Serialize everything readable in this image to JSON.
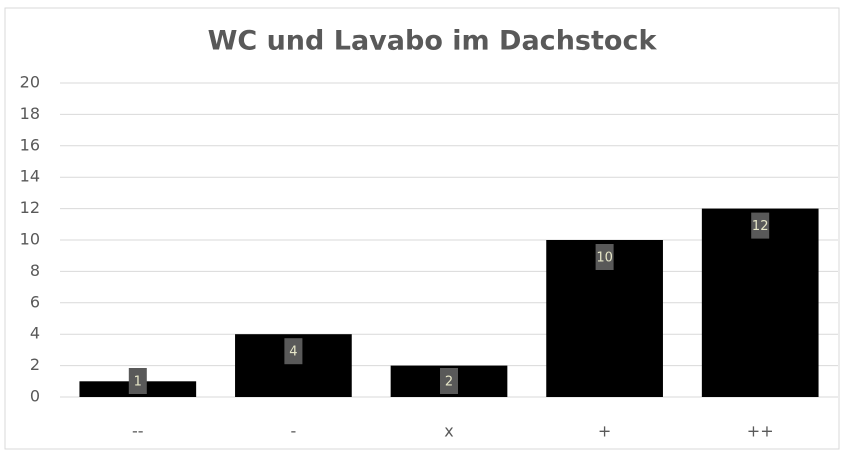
{
  "chart_data": {
    "type": "bar",
    "title": "WC und Lavabo im Dachstock",
    "categories": [
      "--",
      "-",
      "x",
      "+",
      "++"
    ],
    "values": [
      1,
      4,
      2,
      10,
      12
    ],
    "color": "#000000",
    "ylim": [
      0,
      20
    ],
    "yticks": [
      0,
      2,
      4,
      6,
      8,
      10,
      12,
      14,
      16,
      18,
      20
    ],
    "grid": true,
    "data_labels": true
  }
}
